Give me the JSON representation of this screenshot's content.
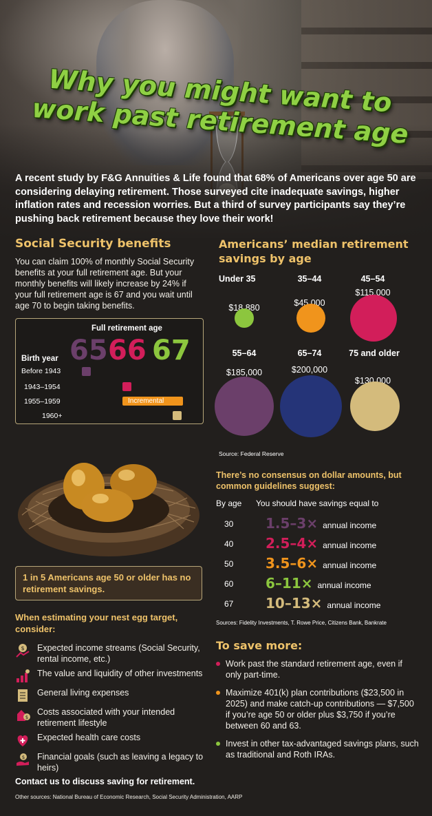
{
  "title": {
    "line1": "Why you might want to",
    "line2": "work past retirement age"
  },
  "intro": "A recent study by F&G Annuities & Life found that 68% of Americans over age 50 are considering delaying retirement. Those surveyed cite inadequate savings, higher inflation rates and recession worries. But a third of survey participants say they’re pushing back retirement because they love their work!",
  "social_security": {
    "title": "Social Security benefits",
    "text": "You can claim 100% of monthly Social Security benefits at your full retirement age. But your monthly benefits will likely increase by 24% if your full retirement age is 67 and you wait until age 70 to begin taking benefits.",
    "fra_label": "Full retirement age",
    "birth_year_label": "Birth year",
    "ages": [
      "65",
      "66",
      "67"
    ],
    "rows": [
      {
        "label": "Before 1943",
        "color": "#6b3f6a"
      },
      {
        "label": "1943–1954",
        "color": "#d21e5a"
      },
      {
        "label": "1955–1959",
        "color": "#f0941c",
        "bar_text": "Incremental"
      },
      {
        "label": "1960+",
        "color": "#d4bb7c"
      }
    ]
  },
  "stat": "1 in 5 Americans age 50 or older has no retirement savings.",
  "consider": {
    "title": "When estimating your nest egg target, consider:",
    "items": [
      {
        "icon": "income-streams-icon",
        "text": "Expected income streams (Social Security, rental income, etc.)"
      },
      {
        "icon": "investments-icon",
        "text": "The value and liquidity of other investments"
      },
      {
        "icon": "living-expenses-icon",
        "text": "General living expenses"
      },
      {
        "icon": "lifestyle-costs-icon",
        "text": "Costs associated with your intended retirement lifestyle"
      },
      {
        "icon": "health-care-icon",
        "text": "Expected health care costs"
      },
      {
        "icon": "financial-goals-icon",
        "text": "Financial goals (such as leaving a legacy to heirs)"
      }
    ]
  },
  "contact": "Contact us to discuss saving for retirement.",
  "other_sources": "Other sources: National Bureau of Economic Research, Social Security Administration, AARP",
  "median_savings": {
    "title": "Americans’ median retirement savings by age",
    "groups": [
      {
        "age": "Under 35",
        "amount": "$18,880",
        "value": 18880,
        "color": "#8cc63e"
      },
      {
        "age": "35–44",
        "amount": "$45,000",
        "value": 45000,
        "color": "#f0941c"
      },
      {
        "age": "45–54",
        "amount": "$115,000",
        "value": 115000,
        "color": "#d21e5a"
      },
      {
        "age": "55–64",
        "amount": "$185,000",
        "value": 185000,
        "color": "#6b3f6a"
      },
      {
        "age": "65–74",
        "amount": "$200,000",
        "value": 200000,
        "color": "#253478"
      },
      {
        "age": "75 and older",
        "amount": "$130,000",
        "value": 130000,
        "color": "#d4bb7c"
      }
    ],
    "source": "Source: Federal Reserve"
  },
  "guidelines": {
    "title": "There’s no consensus on dollar amounts, but common guidelines suggest:",
    "col_age": "By age",
    "col_savings": "You should have savings equal to",
    "rows": [
      {
        "age": "30",
        "range": "1.5–3×",
        "suffix": "annual income",
        "color": "#6b3f6a"
      },
      {
        "age": "40",
        "range": "2.5–4×",
        "suffix": "annual income",
        "color": "#d21e5a"
      },
      {
        "age": "50",
        "range": "3.5–6×",
        "suffix": "annual income",
        "color": "#f0941c"
      },
      {
        "age": "60",
        "range": "6–11×",
        "suffix": "annual income",
        "color": "#8cc63e"
      },
      {
        "age": "67",
        "range": "10–13×",
        "suffix": "annual income",
        "color": "#d4bb7c"
      }
    ],
    "sources": "Sources: Fidelity Investments, T. Rowe Price, Citizens Bank, Bankrate"
  },
  "save_more": {
    "title": "To save more:",
    "items": [
      {
        "text": "Work past the standard retirement age, even if only part-time.",
        "color": "#d21e5a"
      },
      {
        "text": "Maximize 401(k) plan contributions ($23,500 in 2025) and make catch-up contributions — $7,500 if you’re age 50 or older plus $3,750 if you’re between 60 and 63.",
        "color": "#f0941c"
      },
      {
        "text": "Invest in other tax-advantaged savings plans, such as traditional and Roth IRAs.",
        "color": "#8cc63e"
      }
    ]
  }
}
